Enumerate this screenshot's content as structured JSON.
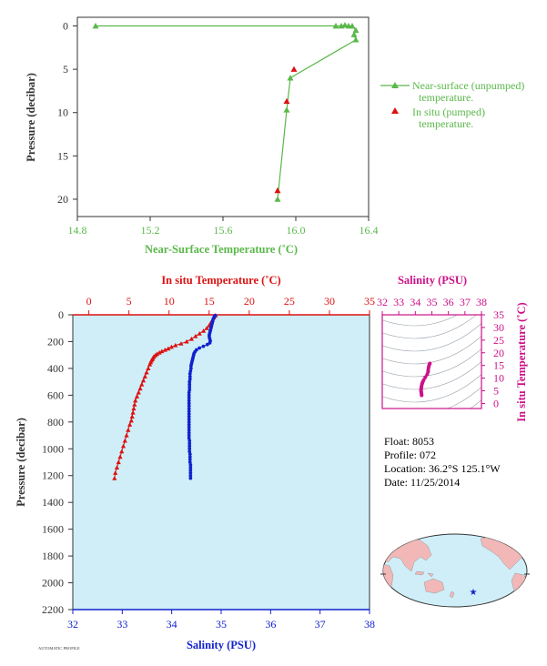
{
  "colors": {
    "green": "#5ab84a",
    "red": "#dd1111",
    "blue": "#1122cc",
    "magenta": "#cc1188",
    "dark": "#333333",
    "panel": "#cfeef8"
  },
  "float_info": {
    "float": "Float:  8053",
    "profile": "Profile:  072",
    "location": "Location:  36.2°S  125.1°W",
    "date": "Date:  11/25/2014"
  },
  "footer": "AUTOMATIC PROFILE",
  "chart_data": [
    {
      "type": "line",
      "xlabel": "Near-Surface Temperature (˚C)",
      "ylabel": "Pressure (decibar)",
      "xlim": [
        14.8,
        16.4
      ],
      "ylim": [
        22,
        -1
      ],
      "xticks": [
        "14.8",
        "15.2",
        "15.6",
        "16.0",
        "16.4"
      ],
      "yticks": [
        "0",
        "5",
        "10",
        "15",
        "20"
      ],
      "legend": {
        "unpumped_line1": "Near-surface (unpumped)",
        "unpumped_line2": "temperature.",
        "pumped_line1": "In situ (pumped)",
        "pumped_line2": "temperature."
      },
      "series": [
        {
          "points": [
            [
              14.9,
              0.0
            ],
            [
              16.22,
              0.0
            ],
            [
              16.25,
              0.0
            ],
            [
              16.27,
              -0.1
            ],
            [
              16.29,
              0.0
            ],
            [
              16.31,
              0.0
            ],
            [
              16.33,
              0.5
            ],
            [
              16.32,
              1.0
            ],
            [
              16.33,
              1.6
            ],
            [
              15.97,
              6.0
            ],
            [
              15.95,
              9.7
            ],
            [
              15.9,
              20.0
            ]
          ]
        },
        {
          "points": [
            [
              15.99,
              5.0
            ],
            [
              15.95,
              8.7
            ],
            [
              15.9,
              19.0
            ]
          ]
        }
      ]
    },
    {
      "type": "line",
      "xlabel": "Salinity (PSU)",
      "top_xlabel": "In situ Temperature (˚C)",
      "ylabel": "Pressure (decibar)",
      "xlim": [
        32,
        38
      ],
      "top_xlim": [
        -2,
        35
      ],
      "ylim": [
        2200,
        0
      ],
      "xticks": [
        "32",
        "33",
        "34",
        "35",
        "36",
        "37",
        "38"
      ],
      "top_xticks": [
        "0",
        "5",
        "10",
        "15",
        "20",
        "25",
        "30",
        "35"
      ],
      "yticks": [
        "0",
        "200",
        "400",
        "600",
        "800",
        "1000",
        "1200",
        "1400",
        "1600",
        "1800",
        "2000",
        "2200"
      ],
      "series": [
        {
          "axis": "top",
          "points": [
            [
              15.8,
              5
            ],
            [
              15.6,
              20
            ],
            [
              15.4,
              40
            ],
            [
              15.2,
              60
            ],
            [
              15.0,
              80
            ],
            [
              14.7,
              100
            ],
            [
              14.3,
              120
            ],
            [
              13.8,
              140
            ],
            [
              13.3,
              160
            ],
            [
              12.8,
              180
            ],
            [
              12.2,
              200
            ],
            [
              11.5,
              215
            ],
            [
              10.8,
              228
            ],
            [
              10.3,
              240
            ],
            [
              9.9,
              252
            ],
            [
              9.5,
              262
            ],
            [
              9.1,
              272
            ],
            [
              8.8,
              282
            ],
            [
              8.5,
              292
            ],
            [
              8.3,
              302
            ],
            [
              8.1,
              312
            ],
            [
              8.0,
              322
            ],
            [
              7.9,
              332
            ],
            [
              7.8,
              342
            ],
            [
              7.7,
              355
            ],
            [
              7.6,
              370
            ],
            [
              7.4,
              400
            ],
            [
              7.2,
              430
            ],
            [
              7.0,
              460
            ],
            [
              6.8,
              490
            ],
            [
              6.6,
              520
            ],
            [
              6.4,
              550
            ],
            [
              6.2,
              580
            ],
            [
              6.0,
              610
            ],
            [
              5.8,
              640
            ],
            [
              5.7,
              670
            ],
            [
              5.6,
              700
            ],
            [
              5.5,
              730
            ],
            [
              5.4,
              760
            ],
            [
              5.3,
              790
            ],
            [
              5.1,
              820
            ],
            [
              4.9,
              860
            ],
            [
              4.7,
              900
            ],
            [
              4.5,
              940
            ],
            [
              4.3,
              980
            ],
            [
              4.1,
              1020
            ],
            [
              3.9,
              1060
            ],
            [
              3.7,
              1100
            ],
            [
              3.5,
              1140
            ],
            [
              3.3,
              1180
            ],
            [
              3.2,
              1220
            ]
          ]
        },
        {
          "axis": "bottom",
          "points": [
            [
              34.88,
              5
            ],
            [
              34.86,
              15
            ],
            [
              34.84,
              30
            ],
            [
              34.83,
              45
            ],
            [
              34.82,
              60
            ],
            [
              34.81,
              75
            ],
            [
              34.8,
              90
            ],
            [
              34.79,
              105
            ],
            [
              34.78,
              120
            ],
            [
              34.77,
              135
            ],
            [
              34.76,
              150
            ],
            [
              34.76,
              165
            ],
            [
              34.77,
              180
            ],
            [
              34.78,
              195
            ],
            [
              34.77,
              210
            ],
            [
              34.72,
              222
            ],
            [
              34.64,
              235
            ],
            [
              34.56,
              248
            ],
            [
              34.5,
              262
            ],
            [
              34.47,
              276
            ],
            [
              34.45,
              290
            ],
            [
              34.44,
              305
            ],
            [
              34.43,
              320
            ],
            [
              34.42,
              335
            ],
            [
              34.41,
              350
            ],
            [
              34.4,
              365
            ],
            [
              34.39,
              380
            ],
            [
              34.39,
              400
            ],
            [
              34.38,
              420
            ],
            [
              34.37,
              440
            ],
            [
              34.37,
              460
            ],
            [
              34.37,
              480
            ],
            [
              34.36,
              500
            ],
            [
              34.36,
              520
            ],
            [
              34.36,
              540
            ],
            [
              34.36,
              560
            ],
            [
              34.35,
              580
            ],
            [
              34.35,
              600
            ],
            [
              34.35,
              620
            ],
            [
              34.35,
              640
            ],
            [
              34.35,
              660
            ],
            [
              34.35,
              680
            ],
            [
              34.35,
              700
            ],
            [
              34.35,
              720
            ],
            [
              34.35,
              740
            ],
            [
              34.35,
              760
            ],
            [
              34.35,
              780
            ],
            [
              34.35,
              800
            ],
            [
              34.35,
              820
            ],
            [
              34.35,
              840
            ],
            [
              34.35,
              860
            ],
            [
              34.35,
              880
            ],
            [
              34.35,
              900
            ],
            [
              34.35,
              920
            ],
            [
              34.36,
              940
            ],
            [
              34.36,
              960
            ],
            [
              34.36,
              980
            ],
            [
              34.36,
              1000
            ],
            [
              34.36,
              1020
            ],
            [
              34.37,
              1040
            ],
            [
              34.37,
              1060
            ],
            [
              34.37,
              1080
            ],
            [
              34.37,
              1100
            ],
            [
              34.38,
              1120
            ],
            [
              34.38,
              1140
            ],
            [
              34.38,
              1160
            ],
            [
              34.38,
              1180
            ],
            [
              34.38,
              1200
            ],
            [
              34.38,
              1220
            ]
          ]
        }
      ]
    },
    {
      "type": "scatter",
      "xlabel": "Salinity (PSU)",
      "ylabel": "In situ Temperature (˚C)",
      "xlim": [
        32,
        38
      ],
      "ylim": [
        -2,
        35
      ],
      "xticks": [
        "32",
        "33",
        "34",
        "35",
        "36",
        "37",
        "38"
      ],
      "yticks": [
        "0",
        "5",
        "10",
        "15",
        "20",
        "25",
        "30",
        "35"
      ],
      "series": [
        {
          "points": [
            [
              34.88,
              15.8
            ],
            [
              34.86,
              15.5
            ],
            [
              34.83,
              15.0
            ],
            [
              34.8,
              14.2
            ],
            [
              34.78,
              13.3
            ],
            [
              34.77,
              12.5
            ],
            [
              34.72,
              11.5
            ],
            [
              34.6,
              10.3
            ],
            [
              34.5,
              9.2
            ],
            [
              34.45,
              8.5
            ],
            [
              34.42,
              8.0
            ],
            [
              34.4,
              7.6
            ],
            [
              34.38,
              7.0
            ],
            [
              34.37,
              6.5
            ],
            [
              34.36,
              6.0
            ],
            [
              34.35,
              5.6
            ],
            [
              34.35,
              5.2
            ],
            [
              34.35,
              4.8
            ],
            [
              34.36,
              4.4
            ],
            [
              34.37,
              3.9
            ],
            [
              34.38,
              3.5
            ],
            [
              34.38,
              3.2
            ]
          ]
        }
      ]
    }
  ]
}
